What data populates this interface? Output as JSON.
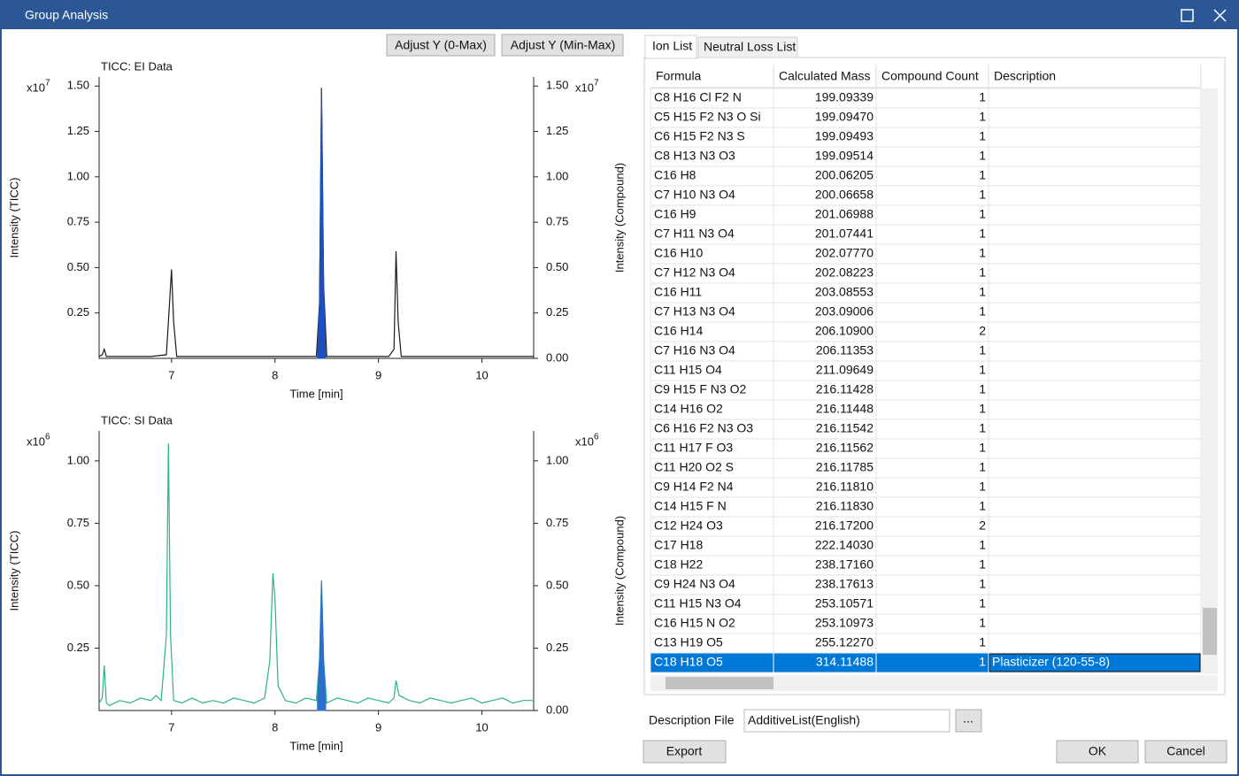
{
  "window": {
    "title": "Group Analysis"
  },
  "toolbar": {
    "adjust_y_0_max": "Adjust Y (0-Max)",
    "adjust_y_min_max": "Adjust Y (Min-Max)"
  },
  "charts": [
    {
      "type": "line",
      "title": "TICC: EI Data",
      "xlabel": "Time [min]",
      "ylabel": "Intensity (TICC)",
      "y2label": "Intensity (Compound)",
      "multiplier": "x10",
      "exponent": "7",
      "xlim": [
        6.3,
        10.5
      ],
      "xticks": [
        7,
        8,
        9,
        10
      ],
      "ylim": [
        0,
        1.55
      ],
      "yticks": [
        {
          "value": 0.25,
          "label": "0.25"
        },
        {
          "value": 0.5,
          "label": "0.50"
        },
        {
          "value": 0.75,
          "label": "0.75"
        },
        {
          "value": 1,
          "label": "1.00"
        },
        {
          "value": 1.25,
          "label": "1.25"
        },
        {
          "value": 1.5,
          "label": "1.50"
        }
      ],
      "y2lim": [
        0,
        1.55
      ],
      "y2ticks": [
        {
          "value": 0,
          "label": "0.00"
        },
        {
          "value": 0.25,
          "label": "0.25"
        },
        {
          "value": 0.5,
          "label": "0.50"
        },
        {
          "value": 0.75,
          "label": "0.75"
        },
        {
          "value": 1,
          "label": "1.00"
        },
        {
          "value": 1.25,
          "label": "1.25"
        },
        {
          "value": 1.5,
          "label": "1.50"
        }
      ],
      "series": [
        {
          "color": "#1a1a1a",
          "x": [
            6.3,
            6.33,
            6.35,
            6.37,
            6.4,
            6.6,
            6.8,
            6.95,
            6.98,
            7.0,
            7.02,
            7.05,
            7.3,
            7.6,
            7.9,
            8.2,
            8.4,
            8.43,
            8.45,
            8.47,
            8.5,
            8.8,
            9.1,
            9.15,
            9.17,
            9.19,
            9.22,
            9.5,
            9.8,
            10.1,
            10.5
          ],
          "values": [
            0.01,
            0.02,
            0.05,
            0.01,
            0.01,
            0.01,
            0.01,
            0.02,
            0.3,
            0.49,
            0.2,
            0.01,
            0.01,
            0.01,
            0.01,
            0.01,
            0.01,
            0.3,
            1.49,
            0.4,
            0.01,
            0.01,
            0.01,
            0.05,
            0.59,
            0.2,
            0.01,
            0.01,
            0.01,
            0.01,
            0.01
          ]
        },
        {
          "color": "#1f4fbf",
          "fill": true,
          "x": [
            8.41,
            8.43,
            8.45,
            8.47,
            8.49
          ],
          "values": [
            0.01,
            0.3,
            1.49,
            0.4,
            0.01
          ]
        }
      ]
    },
    {
      "type": "line",
      "title": "TICC: SI Data",
      "xlabel": "Time [min]",
      "ylabel": "Intensity (TICC)",
      "y2label": "Intensity (Compound)",
      "multiplier": "x10",
      "exponent": "6",
      "xlim": [
        6.3,
        10.5
      ],
      "xticks": [
        7,
        8,
        9,
        10
      ],
      "ylim": [
        0,
        1.12
      ],
      "yticks": [
        {
          "value": 0.25,
          "label": "0.25"
        },
        {
          "value": 0.5,
          "label": "0.50"
        },
        {
          "value": 0.75,
          "label": "0.75"
        },
        {
          "value": 1,
          "label": "1.00"
        }
      ],
      "y2lim": [
        0,
        1.12
      ],
      "y2ticks": [
        {
          "value": 0,
          "label": "0.00"
        },
        {
          "value": 0.25,
          "label": "0.25"
        },
        {
          "value": 0.5,
          "label": "0.50"
        },
        {
          "value": 0.75,
          "label": "0.75"
        },
        {
          "value": 1,
          "label": "1.00"
        }
      ],
      "series": [
        {
          "color": "#2bb38a",
          "x": [
            6.3,
            6.33,
            6.35,
            6.37,
            6.4,
            6.5,
            6.6,
            6.7,
            6.8,
            6.85,
            6.9,
            6.95,
            6.97,
            6.99,
            7.02,
            7.1,
            7.2,
            7.3,
            7.4,
            7.5,
            7.6,
            7.7,
            7.8,
            7.9,
            7.95,
            7.98,
            8.0,
            8.03,
            8.1,
            8.2,
            8.3,
            8.4,
            8.43,
            8.45,
            8.47,
            8.5,
            8.6,
            8.7,
            8.8,
            8.9,
            9.0,
            9.1,
            9.15,
            9.17,
            9.2,
            9.3,
            9.4,
            9.5,
            9.6,
            9.7,
            9.8,
            9.9,
            10.0,
            10.1,
            10.2,
            10.3,
            10.4,
            10.5
          ],
          "values": [
            0.03,
            0.05,
            0.18,
            0.03,
            0.02,
            0.04,
            0.03,
            0.05,
            0.04,
            0.06,
            0.04,
            0.3,
            1.07,
            0.3,
            0.04,
            0.03,
            0.05,
            0.03,
            0.04,
            0.03,
            0.05,
            0.04,
            0.03,
            0.05,
            0.2,
            0.55,
            0.45,
            0.1,
            0.04,
            0.03,
            0.05,
            0.04,
            0.2,
            0.52,
            0.2,
            0.03,
            0.05,
            0.04,
            0.03,
            0.05,
            0.04,
            0.03,
            0.05,
            0.12,
            0.06,
            0.04,
            0.03,
            0.05,
            0.04,
            0.03,
            0.04,
            0.05,
            0.03,
            0.04,
            0.05,
            0.03,
            0.04,
            0.04
          ]
        },
        {
          "color": "#2a6fc9",
          "fill": true,
          "x": [
            8.41,
            8.43,
            8.45,
            8.47,
            8.49
          ],
          "values": [
            0.04,
            0.2,
            0.52,
            0.2,
            0.03
          ]
        }
      ]
    }
  ],
  "tabs": [
    "Ion List",
    "Neutral Loss List"
  ],
  "table": {
    "columns": [
      "Formula",
      "Calculated Mass",
      "Compound Count",
      "Description"
    ],
    "rows": [
      [
        "C8 H16 Cl F2 N",
        "199.09339",
        1
      ],
      [
        "C5 H15 F2 N3 O Si",
        "199.09470",
        1
      ],
      [
        "C6 H15 F2 N3 S",
        "199.09493",
        1
      ],
      [
        "C8 H13 N3 O3",
        "199.09514",
        1
      ],
      [
        "C16 H8",
        "200.06205",
        1
      ],
      [
        "C7 H10 N3 O4",
        "200.06658",
        1
      ],
      [
        "C16 H9",
        "201.06988",
        1
      ],
      [
        "C7 H11 N3 O4",
        "201.07441",
        1
      ],
      [
        "C16 H10",
        "202.07770",
        1
      ],
      [
        "C7 H12 N3 O4",
        "202.08223",
        1
      ],
      [
        "C16 H11",
        "203.08553",
        1
      ],
      [
        "C7 H13 N3 O4",
        "203.09006",
        1
      ],
      [
        "C16 H14",
        "206.10900",
        2
      ],
      [
        "C7 H16 N3 O4",
        "206.11353",
        1
      ],
      [
        "C11 H15 O4",
        "211.09649",
        1
      ],
      [
        "C9 H15 F N3 O2",
        "216.11428",
        1
      ],
      [
        "C14 H16 O2",
        "216.11448",
        1
      ],
      [
        "C6 H16 F2 N3 O3",
        "216.11542",
        1
      ],
      [
        "C11 H17 F O3",
        "216.11562",
        1
      ],
      [
        "C11 H20 O2 S",
        "216.11785",
        1
      ],
      [
        "C9 H14 F2 N4",
        "216.11810",
        1
      ],
      [
        "C14 H15 F N",
        "216.11830",
        1
      ],
      [
        "C12 H24 O3",
        "216.17200",
        2
      ],
      [
        "C17 H18",
        "222.14030",
        1
      ],
      [
        "C18 H22",
        "238.17160",
        1
      ],
      [
        "C9 H24 N3 O4",
        "238.17613",
        1
      ],
      [
        "C11 H15 N3 O4",
        "253.10571",
        1
      ],
      [
        "C16 H15 N O2",
        "253.10973",
        1
      ],
      [
        "C13 H19 O5",
        "255.12270",
        1
      ],
      [
        "C18 H18 O5",
        "314.11488",
        1,
        "Plasticizer (120-55-8)"
      ]
    ],
    "selected_row": 29
  },
  "description_file": {
    "label": "Description File",
    "value": "AdditiveList(English)",
    "browse": "..."
  },
  "buttons": {
    "export": "Export",
    "ok": "OK",
    "cancel": "Cancel"
  }
}
